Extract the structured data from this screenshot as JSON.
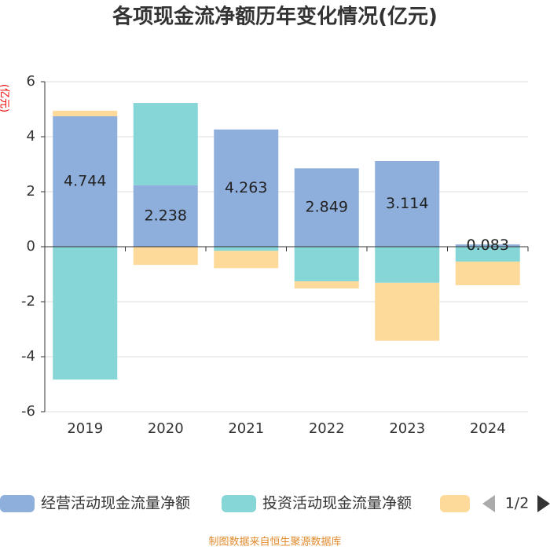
{
  "chart_data": {
    "type": "stacked-bar",
    "title": "各项现金流净额历年变化情况(亿元)",
    "y_label": "(亿元)",
    "categories": [
      "2019",
      "2020",
      "2021",
      "2022",
      "2023",
      "2024"
    ],
    "series": [
      {
        "name": "经营活动现金流量净额",
        "color": "#8eaedc",
        "values": [
          4.744,
          2.238,
          4.263,
          2.849,
          3.114,
          0.083
        ],
        "show_labels": true
      },
      {
        "name": "投资活动现金流量净额",
        "color": "#86d6d8",
        "values": [
          -4.83,
          2.99,
          -0.15,
          -1.26,
          -1.31,
          -0.54
        ]
      },
      {
        "color": "#fdd99a",
        "values": [
          0.2,
          -0.66,
          -0.63,
          -0.26,
          -2.11,
          -0.86
        ]
      }
    ],
    "ylim": [
      -6,
      6
    ],
    "yticks": [
      -6,
      -4,
      -2,
      0,
      2,
      4,
      6
    ],
    "grid": true,
    "legend_page": "1/2",
    "source": "制图数据来自恒生聚源数据库"
  }
}
